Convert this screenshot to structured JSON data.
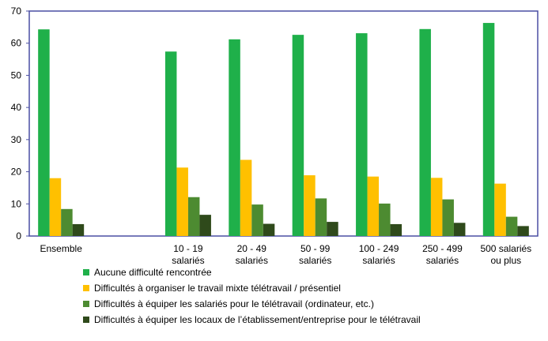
{
  "chart_data": {
    "type": "bar",
    "categories": [
      [
        "Ensemble"
      ],
      [],
      [
        "10 - 19",
        "salariés"
      ],
      [
        "20 - 49",
        "salariés"
      ],
      [
        "50 - 99",
        "salariés"
      ],
      [
        "100 - 249",
        "salariés"
      ],
      [
        "250 - 499",
        "salariés"
      ],
      [
        "500 salariés",
        "ou plus"
      ]
    ],
    "series": [
      {
        "name": "Aucune difficulté rencontrée",
        "color": "#1fb04a",
        "values": [
          64.3,
          null,
          57.4,
          61.2,
          62.6,
          63.1,
          64.4,
          66.3
        ]
      },
      {
        "name": "Difficultés à organiser le travail mixte télétravail / présentiel",
        "color": "#ffc000",
        "values": [
          18.0,
          null,
          21.3,
          23.7,
          18.9,
          18.5,
          18.1,
          16.3
        ]
      },
      {
        "name": "Difficultés à équiper les salariés pour le télétravail (ordinateur, etc.)",
        "color": "#4d8b31",
        "values": [
          8.4,
          null,
          12.1,
          9.8,
          11.7,
          10.1,
          11.4,
          6.0
        ]
      },
      {
        "name": "Difficultés à équiper les locaux de l’établissement/entreprise  pour le télétravail",
        "color": "#2f4a1b",
        "values": [
          3.7,
          null,
          6.6,
          3.8,
          4.4,
          3.7,
          4.1,
          3.1
        ]
      }
    ],
    "ylim": [
      0,
      70
    ],
    "yticks": [
      0,
      10,
      20,
      30,
      40,
      50,
      60,
      70
    ],
    "grid": false,
    "legend": "bottom"
  }
}
